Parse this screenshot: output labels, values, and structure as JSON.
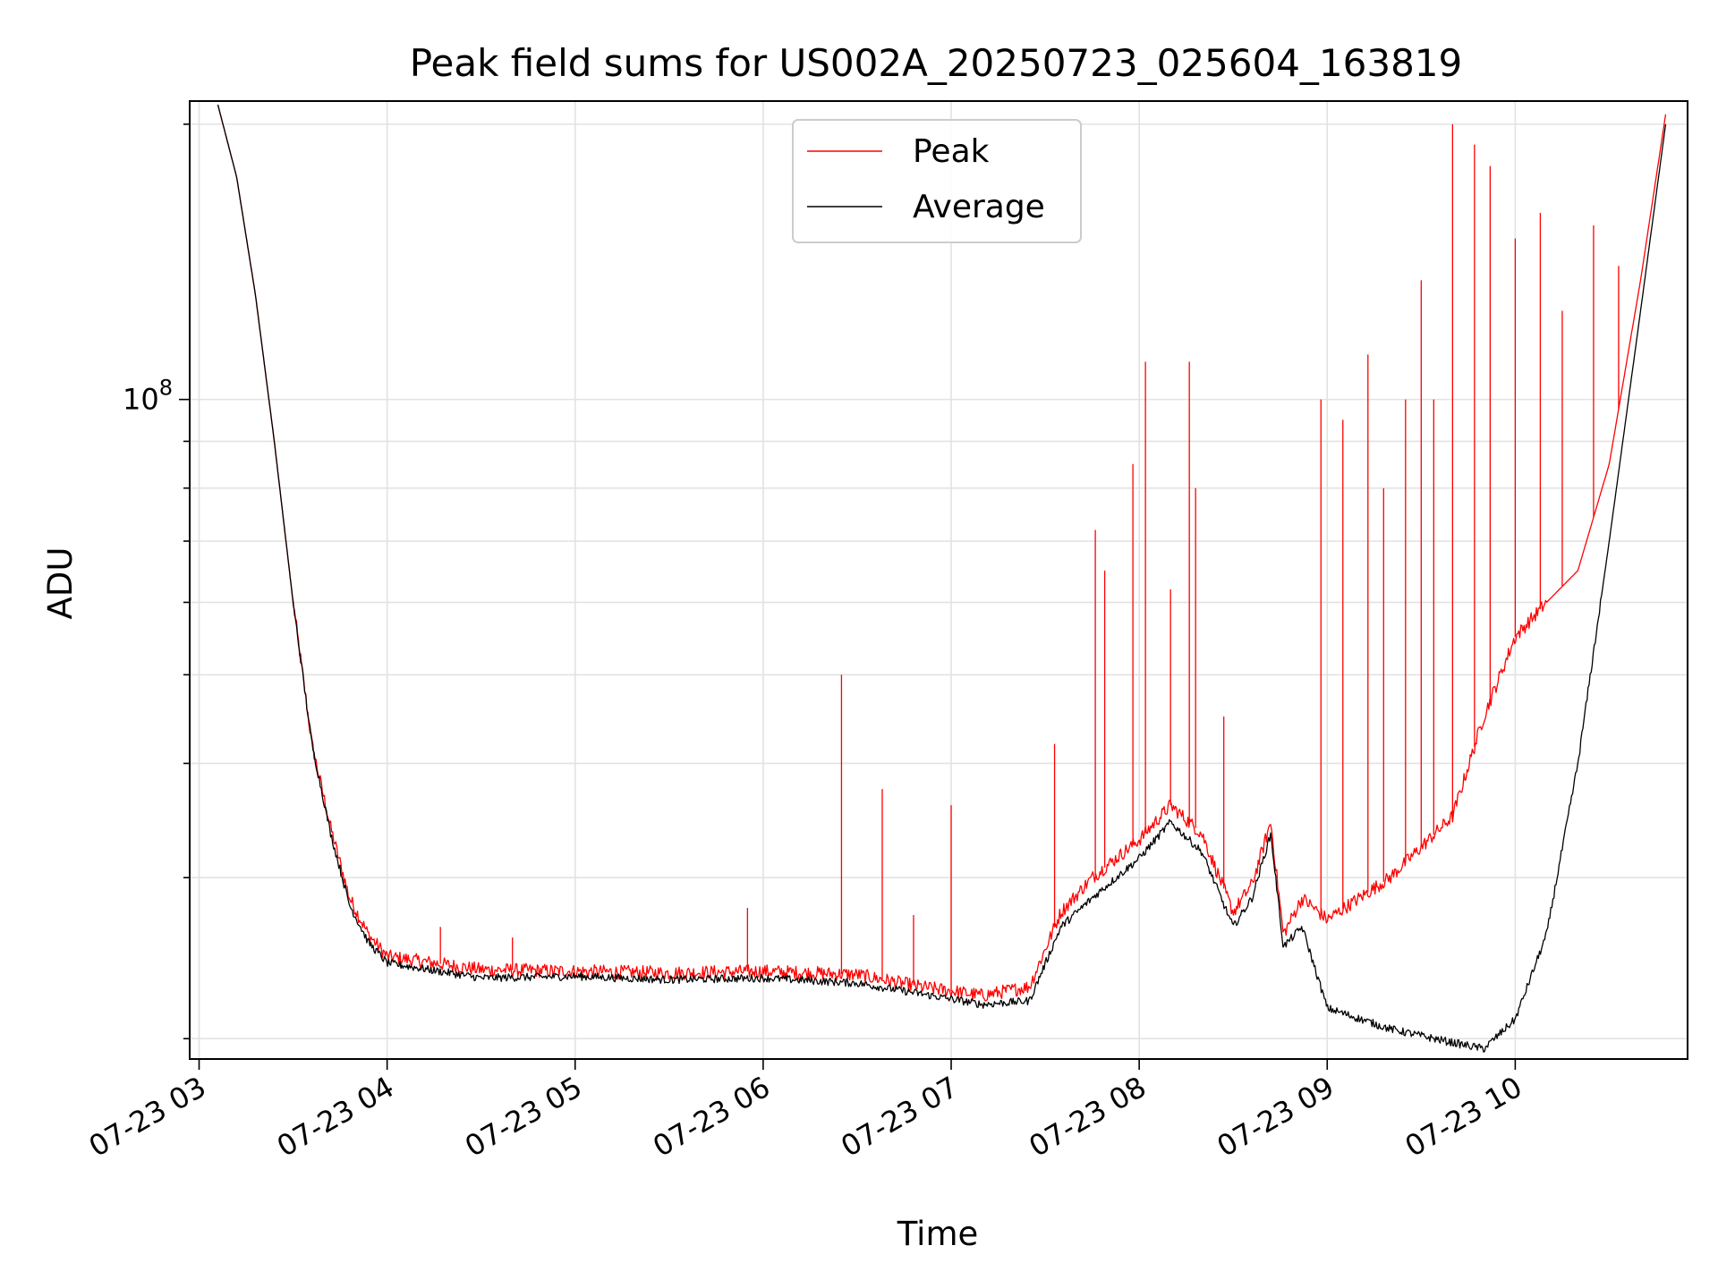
{
  "chart_data": {
    "type": "line",
    "title": "Peak field sums for US002A_20250723_025604_163819",
    "xlabel": "Time",
    "ylabel": "ADU",
    "yscale": "log",
    "ylim": [
      19000000,
      212000000
    ],
    "xlim": [
      "2025-07-23 02:57",
      "2025-07-23 10:55"
    ],
    "x_ticks": [
      "07-23 03",
      "07-23 04",
      "07-23 05",
      "07-23 06",
      "07-23 07",
      "07-23 08",
      "07-23 09",
      "07-23 10"
    ],
    "x_ticks_time": [
      "2025-07-23 03:00",
      "2025-07-23 04:00",
      "2025-07-23 05:00",
      "2025-07-23 06:00",
      "2025-07-23 07:00",
      "2025-07-23 08:00",
      "2025-07-23 09:00",
      "2025-07-23 10:00"
    ],
    "y_ticks": [
      {
        "value": 100000000,
        "label": "10",
        "exp": "8"
      }
    ],
    "grid": true,
    "legend": {
      "position": "top-center",
      "entries": [
        "Peak",
        "Average"
      ]
    },
    "colors": {
      "Peak": "#ff0000",
      "Average": "#000000"
    },
    "series": [
      {
        "name": "Average",
        "x": [
          "2025-07-23 03:06",
          "2025-07-23 03:12",
          "2025-07-23 03:18",
          "2025-07-23 03:24",
          "2025-07-23 03:30",
          "2025-07-23 03:36",
          "2025-07-23 03:42",
          "2025-07-23 03:48",
          "2025-07-23 03:54",
          "2025-07-23 04:00",
          "2025-07-23 04:30",
          "2025-07-23 05:00",
          "2025-07-23 05:30",
          "2025-07-23 06:00",
          "2025-07-23 06:30",
          "2025-07-23 06:50",
          "2025-07-23 07:10",
          "2025-07-23 07:25",
          "2025-07-23 07:35",
          "2025-07-23 07:45",
          "2025-07-23 08:00",
          "2025-07-23 08:10",
          "2025-07-23 08:20",
          "2025-07-23 08:30",
          "2025-07-23 08:36",
          "2025-07-23 08:42",
          "2025-07-23 08:46",
          "2025-07-23 08:52",
          "2025-07-23 09:00",
          "2025-07-23 09:20",
          "2025-07-23 09:40",
          "2025-07-23 09:50",
          "2025-07-23 10:00",
          "2025-07-23 10:10",
          "2025-07-23 10:20",
          "2025-07-23 10:30",
          "2025-07-23 10:40",
          "2025-07-23 10:48"
        ],
        "y": [
          210000000,
          175000000,
          130000000,
          90000000,
          60000000,
          42000000,
          33500000,
          28000000,
          25500000,
          24200000,
          23300000,
          23400000,
          23200000,
          23300000,
          23000000,
          22400000,
          21800000,
          22000000,
          26500000,
          28500000,
          31500000,
          34500000,
          32000000,
          26500000,
          28500000,
          33500000,
          25200000,
          26500000,
          21600000,
          20500000,
          19800000,
          19500000,
          21000000,
          26000000,
          40000000,
          70000000,
          125000000,
          200000000
        ]
      },
      {
        "name": "Peak",
        "x": [
          "2025-07-23 03:06",
          "2025-07-23 03:12",
          "2025-07-23 03:18",
          "2025-07-23 03:24",
          "2025-07-23 03:30",
          "2025-07-23 03:36",
          "2025-07-23 03:42",
          "2025-07-23 03:48",
          "2025-07-23 03:54",
          "2025-07-23 04:00",
          "2025-07-23 04:30",
          "2025-07-23 05:00",
          "2025-07-23 05:30",
          "2025-07-23 06:00",
          "2025-07-23 06:30",
          "2025-07-23 06:50",
          "2025-07-23 07:10",
          "2025-07-23 07:25",
          "2025-07-23 07:35",
          "2025-07-23 07:45",
          "2025-07-23 08:00",
          "2025-07-23 08:10",
          "2025-07-23 08:20",
          "2025-07-23 08:30",
          "2025-07-23 08:36",
          "2025-07-23 08:42",
          "2025-07-23 08:46",
          "2025-07-23 08:52",
          "2025-07-23 09:00",
          "2025-07-23 09:20",
          "2025-07-23 09:40",
          "2025-07-23 09:50",
          "2025-07-23 10:00",
          "2025-07-23 10:10",
          "2025-07-23 10:20",
          "2025-07-23 10:30",
          "2025-07-23 10:40",
          "2025-07-23 10:48"
        ],
        "y": [
          210000000,
          175000000,
          130000000,
          90000000,
          60000000,
          42000000,
          34000000,
          28500000,
          26000000,
          24600000,
          23800000,
          23700000,
          23600000,
          23700000,
          23500000,
          22800000,
          22300000,
          22800000,
          27500000,
          30000000,
          33000000,
          36000000,
          33500000,
          27500000,
          29500000,
          34500000,
          26000000,
          28500000,
          27000000,
          30000000,
          35000000,
          45000000,
          55000000,
          60000000,
          65000000,
          85000000,
          135000000,
          205000000
        ],
        "spikes": [
          {
            "x": "2025-07-23 04:17",
            "y": 26500000
          },
          {
            "x": "2025-07-23 04:40",
            "y": 25800000
          },
          {
            "x": "2025-07-23 05:55",
            "y": 27800000
          },
          {
            "x": "2025-07-23 06:25",
            "y": 50000000
          },
          {
            "x": "2025-07-23 06:38",
            "y": 37500000
          },
          {
            "x": "2025-07-23 06:48",
            "y": 27300000
          },
          {
            "x": "2025-07-23 07:00",
            "y": 36000000
          },
          {
            "x": "2025-07-23 07:33",
            "y": 42000000
          },
          {
            "x": "2025-07-23 07:46",
            "y": 72000000
          },
          {
            "x": "2025-07-23 07:49",
            "y": 65000000
          },
          {
            "x": "2025-07-23 07:58",
            "y": 85000000
          },
          {
            "x": "2025-07-23 08:02",
            "y": 110000000
          },
          {
            "x": "2025-07-23 08:10",
            "y": 62000000
          },
          {
            "x": "2025-07-23 08:16",
            "y": 110000000
          },
          {
            "x": "2025-07-23 08:18",
            "y": 80000000
          },
          {
            "x": "2025-07-23 08:27",
            "y": 45000000
          },
          {
            "x": "2025-07-23 08:58",
            "y": 100000000
          },
          {
            "x": "2025-07-23 09:05",
            "y": 95000000
          },
          {
            "x": "2025-07-23 09:13",
            "y": 112000000
          },
          {
            "x": "2025-07-23 09:18",
            "y": 80000000
          },
          {
            "x": "2025-07-23 09:25",
            "y": 100000000
          },
          {
            "x": "2025-07-23 09:30",
            "y": 135000000
          },
          {
            "x": "2025-07-23 09:34",
            "y": 100000000
          },
          {
            "x": "2025-07-23 09:40",
            "y": 200000000
          },
          {
            "x": "2025-07-23 09:47",
            "y": 190000000
          },
          {
            "x": "2025-07-23 09:52",
            "y": 180000000
          },
          {
            "x": "2025-07-23 10:00",
            "y": 150000000
          },
          {
            "x": "2025-07-23 10:08",
            "y": 160000000
          },
          {
            "x": "2025-07-23 10:15",
            "y": 125000000
          },
          {
            "x": "2025-07-23 10:25",
            "y": 155000000
          },
          {
            "x": "2025-07-23 10:33",
            "y": 140000000
          }
        ]
      }
    ]
  }
}
